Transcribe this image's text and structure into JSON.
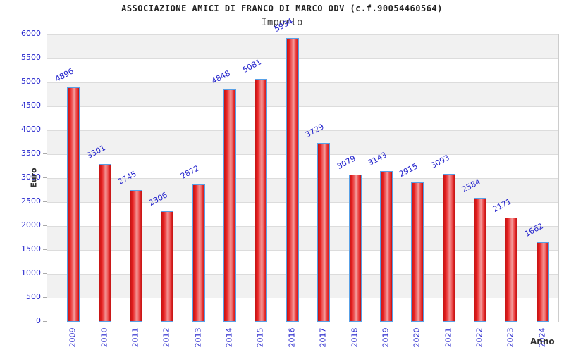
{
  "chart_data": {
    "type": "bar",
    "title": "ASSOCIAZIONE AMICI DI FRANCO DI MARCO ODV (c.f.90054460564)",
    "subtitle": "Importo",
    "xlabel": "Anno",
    "ylabel": "Euro",
    "categories": [
      "2009",
      "2010",
      "2011",
      "2012",
      "2013",
      "2014",
      "2015",
      "2016",
      "2017",
      "2018",
      "2019",
      "2020",
      "2021",
      "2022",
      "2023",
      "2024"
    ],
    "values": [
      4896,
      3301,
      2745,
      2306,
      2872,
      4848,
      5081,
      5934,
      3729,
      3079,
      3143,
      2915,
      3093,
      2584,
      2171,
      1662
    ],
    "ylim": [
      0,
      6000
    ],
    "ytick_step": 500,
    "ytick_labels": [
      "6000",
      "5500",
      "5000",
      "4500",
      "4000",
      "3500",
      "3000",
      "2500",
      "2000",
      "1500",
      "1000",
      "500",
      "0"
    ],
    "grid": "horizontal-bands-on",
    "legend": "none",
    "colors": {
      "bar_fill": "#e82121",
      "bar_fill_highlight": "#f49c9c",
      "bar_border": "#58a0e6",
      "axis_text": "#2222cc",
      "band": "#f1f1f1",
      "gridline": "#dcdcdc",
      "title_text": "#222222",
      "subtitle_text": "#444444",
      "axis_title_text": "#333333"
    }
  }
}
